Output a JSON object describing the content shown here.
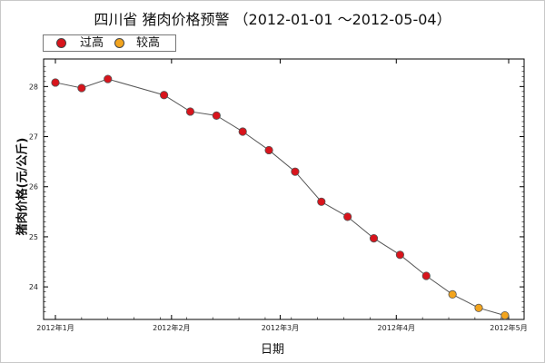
{
  "chart_data": {
    "type": "line",
    "title": "四川省 猪肉价格预警  （2012-01-01 ～2012-05-04）",
    "xlabel": "日期",
    "ylabel": "猪肉价格(元/公斤)",
    "x_tick_labels": [
      "2012年1月",
      "2012年2月",
      "2012年3月",
      "2012年4月",
      "2012年5月"
    ],
    "y_ticks": [
      24,
      25,
      26,
      27,
      28
    ],
    "legend": [
      {
        "label": "过高",
        "color": "#d8141c"
      },
      {
        "label": "较高",
        "color": "#f2a41e"
      }
    ],
    "line_color": "#555555",
    "series": [
      {
        "x": [
          "2012-01-01",
          "2012-01-08",
          "2012-01-15",
          "2012-01-30",
          "2012-02-06",
          "2012-02-13",
          "2012-02-20",
          "2012-02-27",
          "2012-03-05",
          "2012-03-12",
          "2012-03-19",
          "2012-03-26",
          "2012-04-02",
          "2012-04-09",
          "2012-04-16",
          "2012-04-23",
          "2012-04-30"
        ],
        "values": [
          28.08,
          27.97,
          28.15,
          27.83,
          27.5,
          27.42,
          27.1,
          26.73,
          26.3,
          25.7,
          25.4,
          24.97,
          24.64,
          24.22,
          23.85,
          23.58,
          23.43
        ],
        "level": [
          "过高",
          "过高",
          "过高",
          "过高",
          "过高",
          "过高",
          "过高",
          "过高",
          "过高",
          "过高",
          "过高",
          "过高",
          "过高",
          "过高",
          "较高",
          "较高",
          "较高"
        ]
      }
    ]
  }
}
